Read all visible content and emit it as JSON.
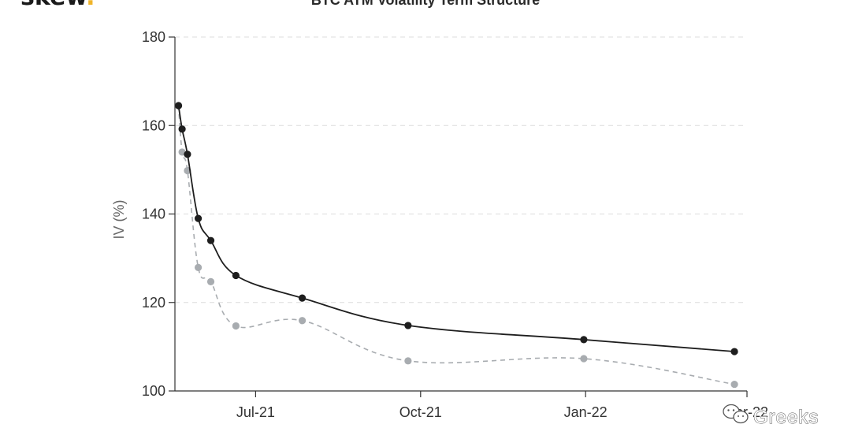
{
  "brand": {
    "logo_text": "skew",
    "logo_dot": ".",
    "dot_color": "#f0b429"
  },
  "watermark": {
    "text": "Greeks",
    "icon": "wechat-icon"
  },
  "chart_data": {
    "type": "line",
    "title": "BTC ATM Volatility Term Structure",
    "xlabel": "",
    "ylabel": "IV (%)",
    "ylim": [
      100,
      180
    ],
    "yticks": [
      100,
      120,
      140,
      160,
      180
    ],
    "xlim": [
      "2021-05-17",
      "2022-04-01"
    ],
    "xticks": [
      {
        "date": "2021-07-01",
        "label": "Jul-21"
      },
      {
        "date": "2021-10-01",
        "label": "Oct-21"
      },
      {
        "date": "2022-01-01",
        "label": "Jan-22"
      },
      {
        "date": "2022-04-01",
        "label": "Apr-22"
      }
    ],
    "grid": true,
    "series": [
      {
        "color": "#1e1e1e",
        "line_style": "solid",
        "points": [
          {
            "x": "2021-05-19",
            "y": 164.5
          },
          {
            "x": "2021-05-21",
            "y": 159.2
          },
          {
            "x": "2021-05-24",
            "y": 153.5
          },
          {
            "x": "2021-05-30",
            "y": 139.0
          },
          {
            "x": "2021-06-06",
            "y": 134.0
          },
          {
            "x": "2021-06-20",
            "y": 126.1
          },
          {
            "x": "2021-07-27",
            "y": 121.0
          },
          {
            "x": "2021-09-24",
            "y": 114.8
          },
          {
            "x": "2021-12-31",
            "y": 111.6
          },
          {
            "x": "2022-03-25",
            "y": 108.9
          }
        ]
      },
      {
        "color": "#a8acb0",
        "line_style": "dashed",
        "points": [
          {
            "x": "2021-05-19",
            "y": 164.5
          },
          {
            "x": "2021-05-21",
            "y": 154.0
          },
          {
            "x": "2021-05-24",
            "y": 149.8
          },
          {
            "x": "2021-05-30",
            "y": 127.9
          },
          {
            "x": "2021-06-06",
            "y": 124.7
          },
          {
            "x": "2021-06-20",
            "y": 114.7
          },
          {
            "x": "2021-07-27",
            "y": 115.9
          },
          {
            "x": "2021-09-24",
            "y": 106.8
          },
          {
            "x": "2021-12-31",
            "y": 107.3
          },
          {
            "x": "2022-03-25",
            "y": 101.5
          }
        ]
      }
    ]
  }
}
